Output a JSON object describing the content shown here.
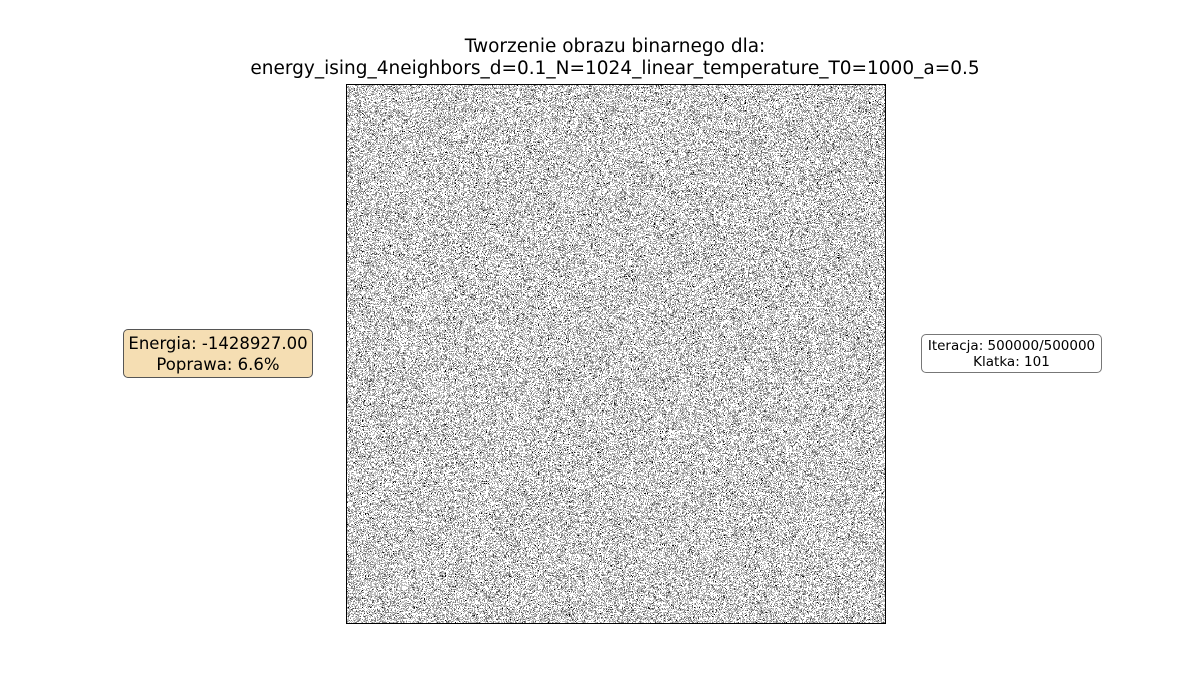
{
  "figure": {
    "title_line1": "Tworzenie obrazu binarnego dla:",
    "title_line2": "energy_ising_4neighbors_d=0.1_N=1024_linear_temperature_T0=1000_a=0.5"
  },
  "energy_box": {
    "energy_text": "Energia: -1428927.00",
    "improvement_text": "Poprawa: 6.6%",
    "background_color": "#f5deb3"
  },
  "iteration_box": {
    "iteration_text": "Iteracja: 500000/500000",
    "frame_text": "Klatka: 101"
  },
  "chart_data": {
    "type": "heatmap",
    "description_values": {
      "grid_size": 1024,
      "black_fraction": 0.2
    },
    "colors": {
      "on": "#000000",
      "off": "#ffffff"
    },
    "xticks": [],
    "yticks": []
  }
}
